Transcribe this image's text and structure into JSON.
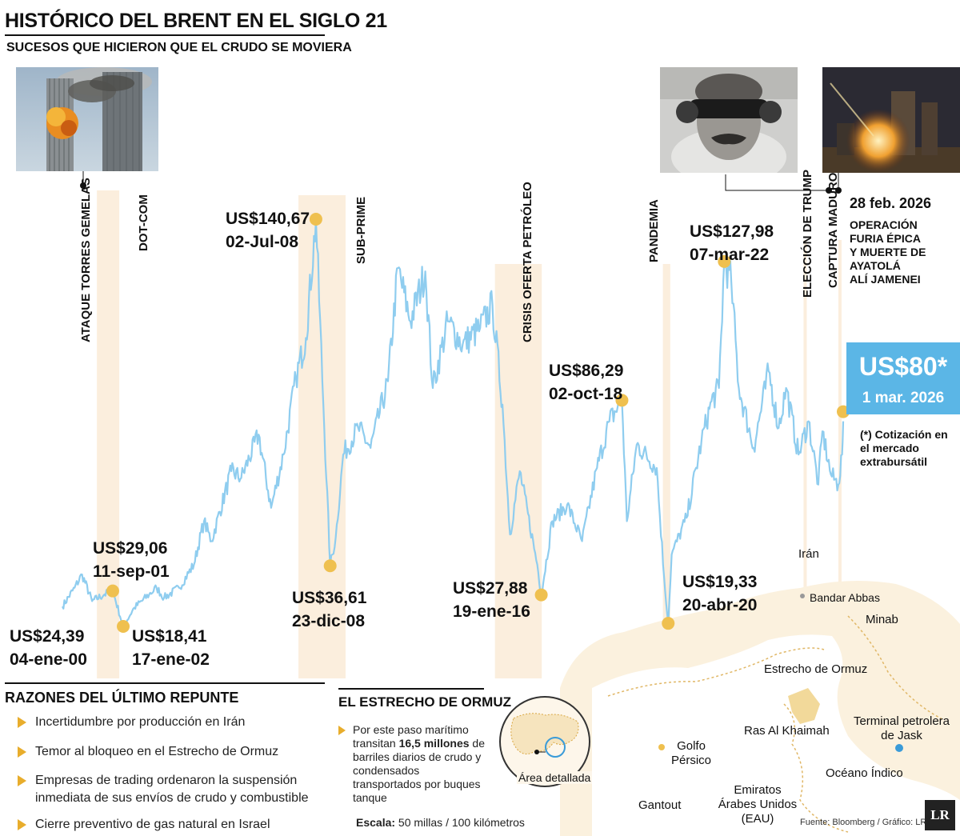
{
  "title": "HISTÓRICO DEL BRENT EN EL SIGLO 21",
  "subtitle": "SUCESOS QUE HICIERON QUE EL CRUDO SE MOVIERA",
  "colors": {
    "line": "#8fcdef",
    "marker": "#efc04f",
    "band": "#fbeedd",
    "price_box": "#5bb6e6",
    "bullet": "#e8ad2c"
  },
  "events": [
    {
      "id": "ataque",
      "label": "ATAQUE TORRES GEMELAS"
    },
    {
      "id": "dotcom",
      "label": "DOT-COM"
    },
    {
      "id": "subprime",
      "label": "SUB-PRIME"
    },
    {
      "id": "crisis",
      "label": "CRISIS OFERTA PETRÓLEO"
    },
    {
      "id": "pandemia",
      "label": "PANDEMIA"
    },
    {
      "id": "trump",
      "label": "ELECCIÓN DE TRUMP"
    },
    {
      "id": "maduro",
      "label": "CAPTURA MADURO"
    }
  ],
  "recent_event": {
    "date": "28 feb. 2026",
    "lines": [
      "OPERACIÓN",
      "FURIA ÉPICA",
      "Y MUERTE DE",
      "AYATOLÁ",
      "ALÍ JAMENEI"
    ]
  },
  "annotations": [
    {
      "value": "US$24,39",
      "date": "04-ene-00"
    },
    {
      "value": "US$29,06",
      "date": "11-sep-01"
    },
    {
      "value": "US$18,41",
      "date": "17-ene-02"
    },
    {
      "value": "US$140,67",
      "date": "02-Jul-08"
    },
    {
      "value": "US$36,61",
      "date": "23-dic-08"
    },
    {
      "value": "US$27,88",
      "date": "19-ene-16"
    },
    {
      "value": "US$86,29",
      "date": "02-oct-18"
    },
    {
      "value": "US$19,33",
      "date": "20-abr-20"
    },
    {
      "value": "US$127,98",
      "date": "07-mar-22"
    }
  ],
  "current_price": {
    "value": "US$80*",
    "date": "1 mar. 2026",
    "note": "(*) Cotización en el mercado extrabursátil"
  },
  "chart_data": {
    "type": "line",
    "title": "HISTÓRICO DEL BRENT EN EL SIGLO 21",
    "xlabel": "",
    "ylabel": "",
    "series": [
      {
        "values": [
          [
            "2000-01-04",
            24.39
          ],
          [
            "2000-06-01",
            30
          ],
          [
            "2000-09-01",
            34
          ],
          [
            "2001-01-01",
            26
          ],
          [
            "2001-06-01",
            28
          ],
          [
            "2001-09-11",
            29.06
          ],
          [
            "2002-01-17",
            18.41
          ],
          [
            "2002-06-01",
            24
          ],
          [
            "2002-12-01",
            28
          ],
          [
            "2003-03-01",
            30
          ],
          [
            "2003-06-01",
            27
          ],
          [
            "2003-12-01",
            30
          ],
          [
            "2004-06-01",
            37
          ],
          [
            "2004-10-01",
            50
          ],
          [
            "2005-01-01",
            44
          ],
          [
            "2005-09-01",
            65
          ],
          [
            "2006-01-01",
            63
          ],
          [
            "2006-08-01",
            76
          ],
          [
            "2007-01-01",
            54
          ],
          [
            "2007-06-01",
            70
          ],
          [
            "2007-11-01",
            93
          ],
          [
            "2008-03-01",
            105
          ],
          [
            "2008-07-02",
            140.67
          ],
          [
            "2008-10-01",
            85
          ],
          [
            "2008-12-23",
            36.61
          ],
          [
            "2009-03-01",
            45
          ],
          [
            "2009-06-01",
            70
          ],
          [
            "2009-12-01",
            78
          ],
          [
            "2010-05-01",
            72
          ],
          [
            "2010-12-01",
            92
          ],
          [
            "2011-04-01",
            126
          ],
          [
            "2011-09-01",
            110
          ],
          [
            "2012-03-01",
            125
          ],
          [
            "2012-06-01",
            90
          ],
          [
            "2012-12-01",
            110
          ],
          [
            "2013-06-01",
            103
          ],
          [
            "2014-01-01",
            108
          ],
          [
            "2014-06-01",
            115
          ],
          [
            "2014-10-01",
            85
          ],
          [
            "2015-01-01",
            46
          ],
          [
            "2015-05-01",
            65
          ],
          [
            "2015-12-01",
            37
          ],
          [
            "2016-01-19",
            27.88
          ],
          [
            "2016-06-01",
            50
          ],
          [
            "2016-12-01",
            55
          ],
          [
            "2017-06-01",
            44
          ],
          [
            "2017-12-01",
            66
          ],
          [
            "2018-05-01",
            80
          ],
          [
            "2018-10-02",
            86.29
          ],
          [
            "2018-12-01",
            50
          ],
          [
            "2019-04-01",
            73
          ],
          [
            "2019-12-01",
            66
          ],
          [
            "2020-03-01",
            33
          ],
          [
            "2020-04-20",
            19.33
          ],
          [
            "2020-06-01",
            40
          ],
          [
            "2020-12-01",
            51
          ],
          [
            "2021-06-01",
            74
          ],
          [
            "2021-10-01",
            86
          ],
          [
            "2022-01-01",
            90
          ],
          [
            "2022-03-07",
            127.98
          ],
          [
            "2022-06-01",
            122
          ],
          [
            "2022-09-01",
            90
          ],
          [
            "2023-03-01",
            72
          ],
          [
            "2023-09-01",
            95
          ],
          [
            "2024-01-01",
            78
          ],
          [
            "2024-04-01",
            90
          ],
          [
            "2024-09-01",
            70
          ],
          [
            "2025-01-01",
            80
          ],
          [
            "2025-05-01",
            61
          ],
          [
            "2025-06-20",
            77
          ],
          [
            "2025-10-01",
            64
          ],
          [
            "2026-01-01",
            61
          ],
          [
            "2026-02-15",
            70
          ],
          [
            "2026-03-01",
            80
          ]
        ]
      }
    ],
    "ylim": [
      15,
      145
    ],
    "grid": false
  },
  "reasons": {
    "title": "RAZONES DEL ÚLTIMO REPUNTE",
    "items": [
      "Incertidumbre por producción en Irán",
      "Temor al bloqueo en el Estrecho de Ormuz",
      "Empresas de trading ordenaron la suspensión inmediata de sus envíos de crudo y combustible",
      "Cierre preventivo de gas natural en Israel"
    ]
  },
  "ormuz": {
    "title": "EL ESTRECHO DE ORMUZ",
    "text_before": "Por este paso marítimo transitan ",
    "text_bold": "16,5 millones",
    "text_after": " de barriles diarios de crudo y condensados transportados por buques tanque",
    "inset_label": "Área detallada",
    "scale_bold": "Escala:",
    "scale_text": " 50 millas / 100 kilómetros"
  },
  "map": {
    "labels": {
      "iran": "Irán",
      "bandar": "Bandar Abbas",
      "minab": "Minab",
      "estrecho": "Estrecho de Ormuz",
      "ras": "Ras Al Khaimah",
      "golfo": "Golfo Pérsico",
      "terminal": "Terminal petrolera de Jask",
      "oceano": "Océano Índico",
      "eau": "Emiratos Árabes Unidos (EAU)",
      "gantout": "Gantout"
    }
  },
  "source": "Fuente:  Bloomberg / Gráfico: LR-AA",
  "logo": "LR"
}
